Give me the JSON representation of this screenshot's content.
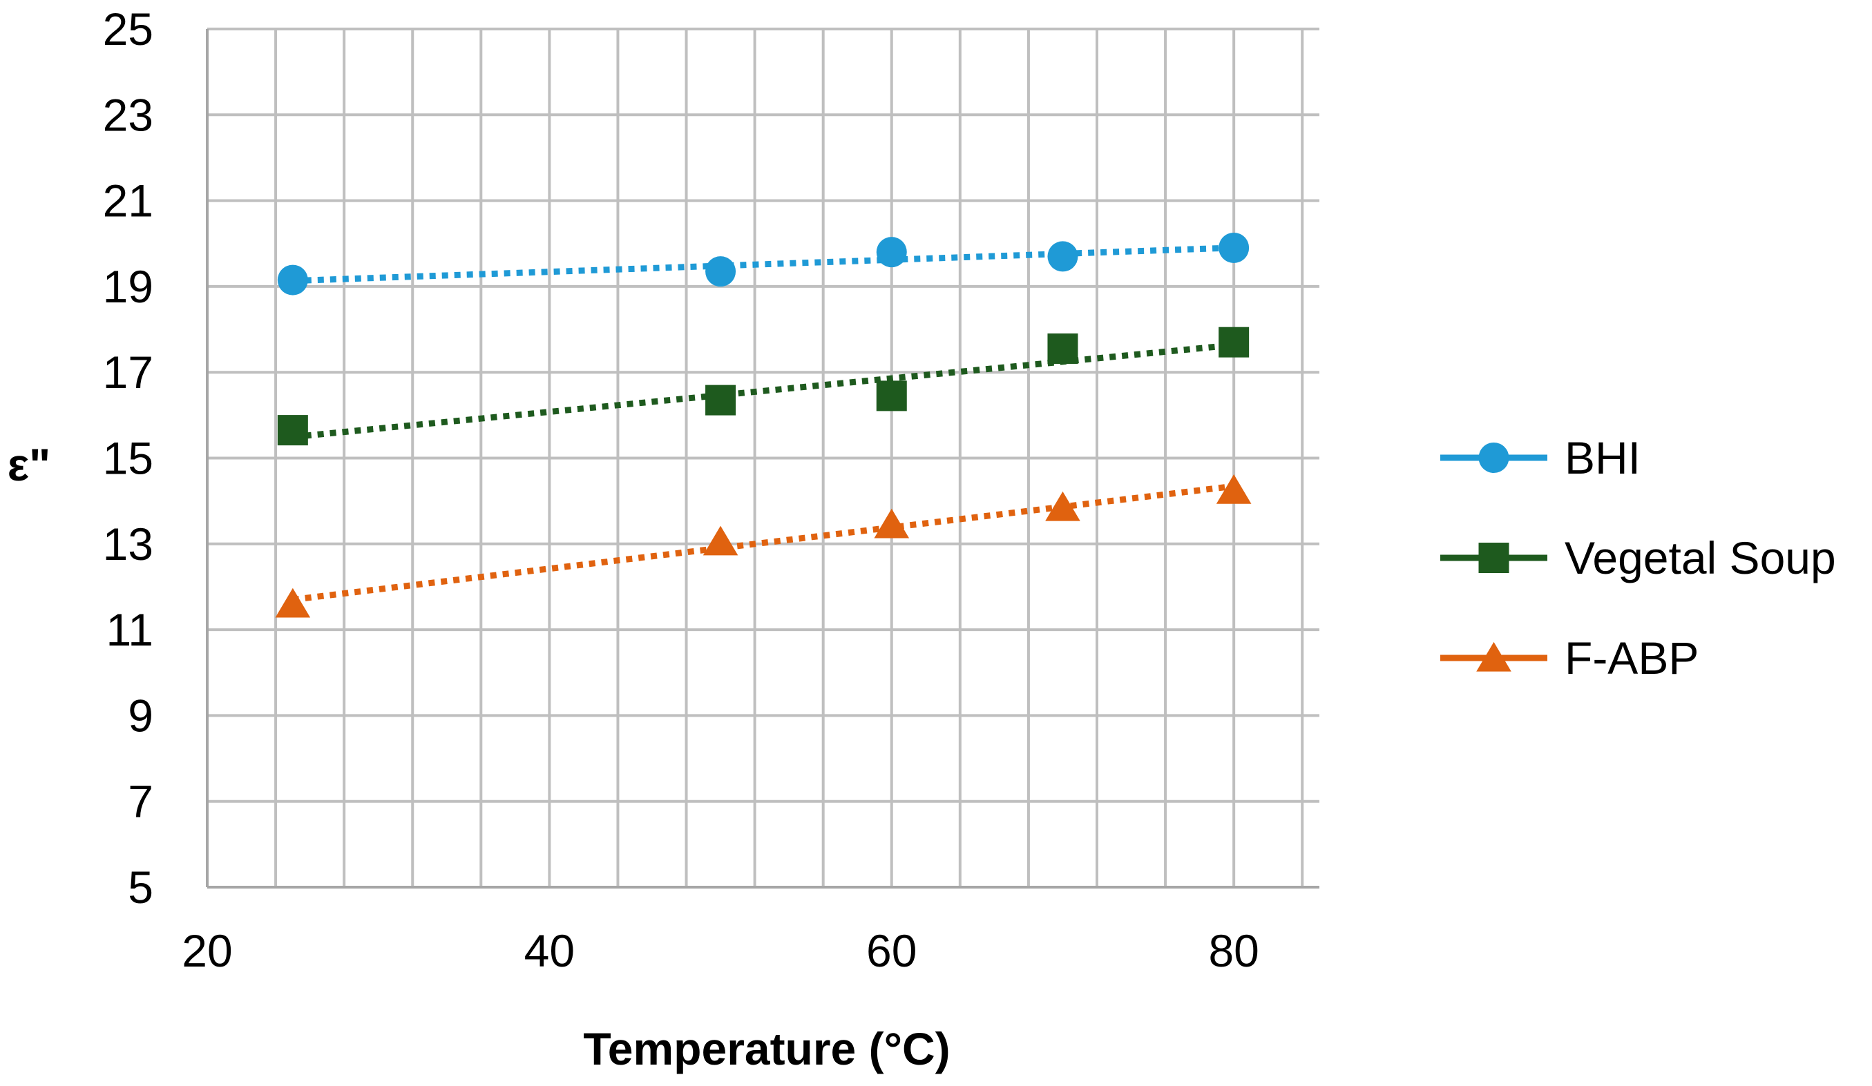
{
  "chart_data": {
    "type": "line",
    "title": "",
    "xlabel": "Temperature (°C)",
    "ylabel": "ε\"",
    "xlim": [
      20,
      85
    ],
    "ylim": [
      5,
      25
    ],
    "x_ticks": [
      "20",
      "40",
      "60",
      "80"
    ],
    "y_ticks": [
      "5",
      "7",
      "9",
      "11",
      "13",
      "15",
      "17",
      "19",
      "21",
      "23",
      "25"
    ],
    "x_grid_step": 4,
    "y_grid_step": 2,
    "grid": true,
    "legend_position": "right",
    "x": [
      25,
      50,
      60,
      70,
      80
    ],
    "series": [
      {
        "name": "BHI",
        "marker": "circle",
        "color": "#1f9ad6",
        "values": [
          19.15,
          19.35,
          19.8,
          19.7,
          19.9
        ]
      },
      {
        "name": "Vegetal Soup",
        "marker": "square",
        "color": "#1e5a1e",
        "values": [
          15.65,
          16.35,
          16.45,
          17.55,
          17.7
        ]
      },
      {
        "name": "F-ABP",
        "marker": "triangle",
        "color": "#e0620f",
        "values": [
          11.6,
          13.05,
          13.45,
          13.85,
          14.25
        ]
      }
    ]
  }
}
